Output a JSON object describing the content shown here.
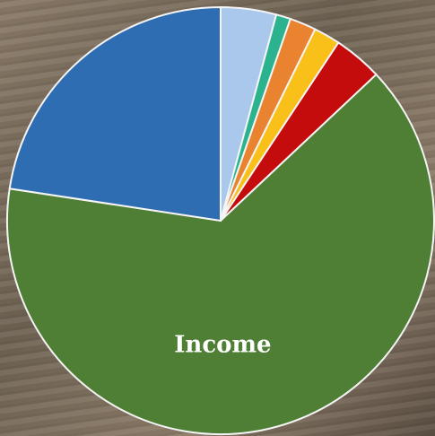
{
  "chart_data": {
    "type": "pie",
    "categories": [
      null,
      null,
      null,
      null,
      null,
      "Income",
      null
    ],
    "values": [
      4.2,
      1.1,
      2,
      2,
      3.7,
      64.4,
      22.6
    ],
    "colors": [
      "#a9c8ec",
      "#2bb38f",
      "#e9832f",
      "#f9c01a",
      "#c40c0c",
      "#4e7f34",
      "#2f6db3"
    ]
  }
}
